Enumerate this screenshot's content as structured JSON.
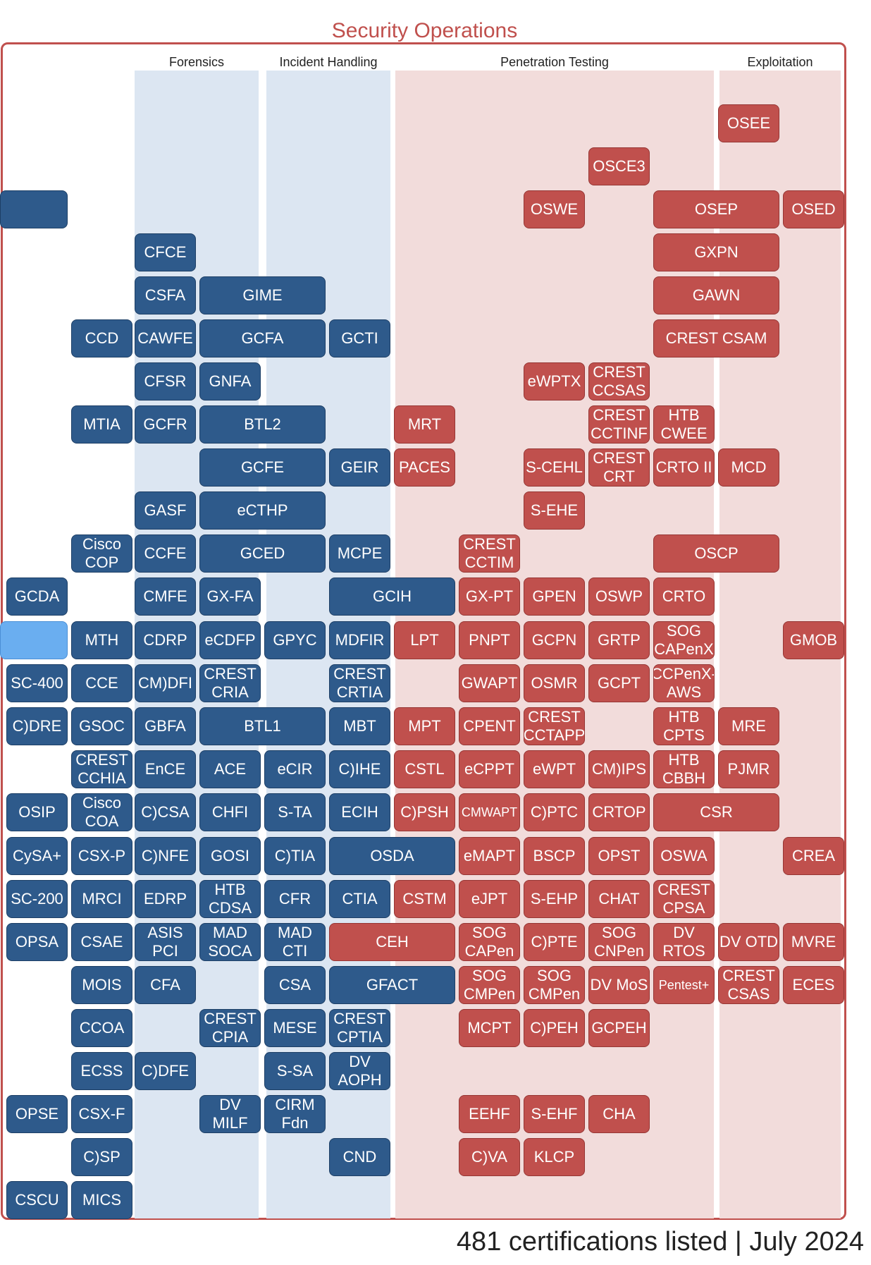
{
  "title": "Security Operations",
  "footer": "481 certifications listed | July 2024",
  "colors": {
    "blue": "#2e5a8b",
    "red": "#c0504d",
    "light": "#6aaef0",
    "blue_band": "#dce6f2",
    "red_band": "#f2dcdb"
  },
  "columns": [
    "Forensics",
    "Incident Handling",
    "Penetration Testing",
    "Exploitation"
  ],
  "certs": [
    {
      "label": "OSEE",
      "color": "red"
    },
    {
      "label": "OSCE3",
      "color": "red"
    },
    {
      "label": "",
      "color": "blue"
    },
    {
      "label": "OSWE",
      "color": "red"
    },
    {
      "label": "OSEP",
      "color": "red"
    },
    {
      "label": "OSED",
      "color": "red"
    },
    {
      "label": "CFCE",
      "color": "blue"
    },
    {
      "label": "GXPN",
      "color": "red"
    },
    {
      "label": "CSFA",
      "color": "blue"
    },
    {
      "label": "GIME",
      "color": "blue"
    },
    {
      "label": "GAWN",
      "color": "red"
    },
    {
      "label": "CCD",
      "color": "blue"
    },
    {
      "label": "CAWFE",
      "color": "blue"
    },
    {
      "label": "GCFA",
      "color": "blue"
    },
    {
      "label": "GCTI",
      "color": "blue"
    },
    {
      "label": "CREST CSAM",
      "color": "red"
    },
    {
      "label": "CFSR",
      "color": "blue"
    },
    {
      "label": "GNFA",
      "color": "blue"
    },
    {
      "label": "eWPTX",
      "color": "red"
    },
    {
      "label": "CREST\nCCSAS",
      "color": "red"
    },
    {
      "label": "MTIA",
      "color": "blue"
    },
    {
      "label": "GCFR",
      "color": "blue"
    },
    {
      "label": "BTL2",
      "color": "blue"
    },
    {
      "label": "MRT",
      "color": "red"
    },
    {
      "label": "CREST\nCCTINF",
      "color": "red"
    },
    {
      "label": "HTB\nCWEE",
      "color": "red"
    },
    {
      "label": "GCFE",
      "color": "blue"
    },
    {
      "label": "GEIR",
      "color": "blue"
    },
    {
      "label": "PACES",
      "color": "red"
    },
    {
      "label": "S-CEHL",
      "color": "red"
    },
    {
      "label": "CREST\nCRT",
      "color": "red"
    },
    {
      "label": "CRTO II",
      "color": "red"
    },
    {
      "label": "MCD",
      "color": "red"
    },
    {
      "label": "GASF",
      "color": "blue"
    },
    {
      "label": "eCTHP",
      "color": "blue"
    },
    {
      "label": "S-EHE",
      "color": "red"
    },
    {
      "label": "Cisco\nCOP",
      "color": "blue"
    },
    {
      "label": "CCFE",
      "color": "blue"
    },
    {
      "label": "GCED",
      "color": "blue"
    },
    {
      "label": "MCPE",
      "color": "blue"
    },
    {
      "label": "CREST\nCCTIM",
      "color": "red"
    },
    {
      "label": "OSCP",
      "color": "red"
    },
    {
      "label": "GCDA",
      "color": "blue"
    },
    {
      "label": "CMFE",
      "color": "blue"
    },
    {
      "label": "GX-FA",
      "color": "blue"
    },
    {
      "label": "GCIH",
      "color": "blue"
    },
    {
      "label": "GX-PT",
      "color": "red"
    },
    {
      "label": "GPEN",
      "color": "red"
    },
    {
      "label": "OSWP",
      "color": "red"
    },
    {
      "label": "CRTO",
      "color": "red"
    },
    {
      "label": "",
      "color": "light"
    },
    {
      "label": "MTH",
      "color": "blue"
    },
    {
      "label": "CDRP",
      "color": "blue"
    },
    {
      "label": "eCDFP",
      "color": "blue"
    },
    {
      "label": "GPYC",
      "color": "blue"
    },
    {
      "label": "MDFIR",
      "color": "blue"
    },
    {
      "label": "LPT",
      "color": "red"
    },
    {
      "label": "PNPT",
      "color": "red"
    },
    {
      "label": "GCPN",
      "color": "red"
    },
    {
      "label": "GRTP",
      "color": "red"
    },
    {
      "label": "SOG\nCAPenX",
      "color": "red"
    },
    {
      "label": "GMOB",
      "color": "red"
    },
    {
      "label": "SC-400",
      "color": "blue"
    },
    {
      "label": "CCE",
      "color": "blue"
    },
    {
      "label": "CM)DFI",
      "color": "blue"
    },
    {
      "label": "CREST\nCRIA",
      "color": "blue"
    },
    {
      "label": "CREST\nCRTIA",
      "color": "blue"
    },
    {
      "label": "GWAPT",
      "color": "red"
    },
    {
      "label": "OSMR",
      "color": "red"
    },
    {
      "label": "GCPT",
      "color": "red"
    },
    {
      "label": "CCPenX-\nAWS",
      "color": "red"
    },
    {
      "label": "C)DRE",
      "color": "blue"
    },
    {
      "label": "GSOC",
      "color": "blue"
    },
    {
      "label": "GBFA",
      "color": "blue"
    },
    {
      "label": "BTL1",
      "color": "blue"
    },
    {
      "label": "MBT",
      "color": "blue"
    },
    {
      "label": "MPT",
      "color": "red"
    },
    {
      "label": "CPENT",
      "color": "red"
    },
    {
      "label": "CREST\nCCTAPP",
      "color": "red"
    },
    {
      "label": "HTB\nCPTS",
      "color": "red"
    },
    {
      "label": "MRE",
      "color": "red"
    },
    {
      "label": "CREST\nCCHIA",
      "color": "blue"
    },
    {
      "label": "EnCE",
      "color": "blue"
    },
    {
      "label": "ACE",
      "color": "blue"
    },
    {
      "label": "eCIR",
      "color": "blue"
    },
    {
      "label": "C)IHE",
      "color": "blue"
    },
    {
      "label": "CSTL",
      "color": "red"
    },
    {
      "label": "eCPPT",
      "color": "red"
    },
    {
      "label": "eWPT",
      "color": "red"
    },
    {
      "label": "CM)IPS",
      "color": "red"
    },
    {
      "label": "HTB\nCBBH",
      "color": "red"
    },
    {
      "label": "PJMR",
      "color": "red"
    },
    {
      "label": "OSIP",
      "color": "blue"
    },
    {
      "label": "Cisco\nCOA",
      "color": "blue"
    },
    {
      "label": "C)CSA",
      "color": "blue"
    },
    {
      "label": "CHFI",
      "color": "blue"
    },
    {
      "label": "S-TA",
      "color": "blue"
    },
    {
      "label": "ECIH",
      "color": "blue"
    },
    {
      "label": "C)PSH",
      "color": "red"
    },
    {
      "label": "CMWAPT",
      "color": "red"
    },
    {
      "label": "C)PTC",
      "color": "red"
    },
    {
      "label": "CRTOP",
      "color": "red"
    },
    {
      "label": "CSR",
      "color": "red"
    },
    {
      "label": "CySA+",
      "color": "blue"
    },
    {
      "label": "CSX-P",
      "color": "blue"
    },
    {
      "label": "C)NFE",
      "color": "blue"
    },
    {
      "label": "GOSI",
      "color": "blue"
    },
    {
      "label": "C)TIA",
      "color": "blue"
    },
    {
      "label": "OSDA",
      "color": "blue"
    },
    {
      "label": "eMAPT",
      "color": "red"
    },
    {
      "label": "BSCP",
      "color": "red"
    },
    {
      "label": "OPST",
      "color": "red"
    },
    {
      "label": "OSWA",
      "color": "red"
    },
    {
      "label": "CREA",
      "color": "red"
    },
    {
      "label": "SC-200",
      "color": "blue"
    },
    {
      "label": "MRCI",
      "color": "blue"
    },
    {
      "label": "EDRP",
      "color": "blue"
    },
    {
      "label": "HTB\nCDSA",
      "color": "blue"
    },
    {
      "label": "CFR",
      "color": "blue"
    },
    {
      "label": "CTIA",
      "color": "blue"
    },
    {
      "label": "CSTM",
      "color": "red"
    },
    {
      "label": "eJPT",
      "color": "red"
    },
    {
      "label": "S-EHP",
      "color": "red"
    },
    {
      "label": "CHAT",
      "color": "red"
    },
    {
      "label": "CREST\nCPSA",
      "color": "red"
    },
    {
      "label": "OPSA",
      "color": "blue"
    },
    {
      "label": "CSAE",
      "color": "blue"
    },
    {
      "label": "ASIS PCI",
      "color": "blue"
    },
    {
      "label": "MAD\nSOCA",
      "color": "blue"
    },
    {
      "label": "MAD\nCTI",
      "color": "blue"
    },
    {
      "label": "CEH",
      "color": "red"
    },
    {
      "label": "SOG\nCAPen",
      "color": "red"
    },
    {
      "label": "C)PTE",
      "color": "red"
    },
    {
      "label": "SOG\nCNPen",
      "color": "red"
    },
    {
      "label": "DV\nRTOS",
      "color": "red"
    },
    {
      "label": "DV OTD",
      "color": "red"
    },
    {
      "label": "MVRE",
      "color": "red"
    },
    {
      "label": "MOIS",
      "color": "blue"
    },
    {
      "label": "CFA",
      "color": "blue"
    },
    {
      "label": "CSA",
      "color": "blue"
    },
    {
      "label": "GFACT",
      "color": "blue"
    },
    {
      "label": "SOG\nCMPen",
      "color": "red"
    },
    {
      "label": "SOG\nCMPen",
      "color": "red"
    },
    {
      "label": "DV MoS",
      "color": "red"
    },
    {
      "label": "Pentest+",
      "color": "red"
    },
    {
      "label": "CREST\nCSAS",
      "color": "red"
    },
    {
      "label": "ECES",
      "color": "red"
    },
    {
      "label": "CCOA",
      "color": "blue"
    },
    {
      "label": "CREST\nCPIA",
      "color": "blue"
    },
    {
      "label": "MESE",
      "color": "blue"
    },
    {
      "label": "CREST\nCPTIA",
      "color": "blue"
    },
    {
      "label": "MCPT",
      "color": "red"
    },
    {
      "label": "C)PEH",
      "color": "red"
    },
    {
      "label": "GCPEH",
      "color": "red"
    },
    {
      "label": "ECSS",
      "color": "blue"
    },
    {
      "label": "C)DFE",
      "color": "blue"
    },
    {
      "label": "S-SA",
      "color": "blue"
    },
    {
      "label": "DV\nAOPH",
      "color": "blue"
    },
    {
      "label": "OPSE",
      "color": "blue"
    },
    {
      "label": "CSX-F",
      "color": "blue"
    },
    {
      "label": "DV MILF",
      "color": "blue"
    },
    {
      "label": "CIRM\nFdn",
      "color": "blue"
    },
    {
      "label": "EEHF",
      "color": "red"
    },
    {
      "label": "S-EHF",
      "color": "red"
    },
    {
      "label": "CHA",
      "color": "red"
    },
    {
      "label": "C)SP",
      "color": "blue"
    },
    {
      "label": "CND",
      "color": "blue"
    },
    {
      "label": "C)VA",
      "color": "red"
    },
    {
      "label": "KLCP",
      "color": "red"
    },
    {
      "label": "CSCU",
      "color": "blue"
    },
    {
      "label": "MICS",
      "color": "blue"
    }
  ]
}
